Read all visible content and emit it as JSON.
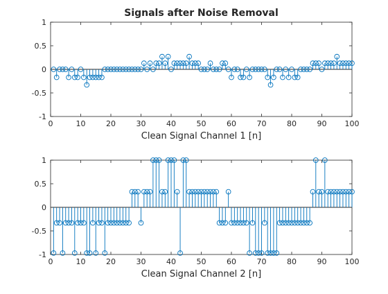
{
  "figure": {
    "title": "Signals after Noise Removal",
    "background": "#ffffff",
    "stem_color": "#0072BD",
    "axis_color": "#262626",
    "zero_line_color": "#262626"
  },
  "chart_data": [
    {
      "type": "stem",
      "title": "Signals after Noise Removal",
      "xlabel": "Clean Signal Channel 1 [n]",
      "ylabel": "",
      "xlim": [
        0,
        100
      ],
      "ylim": [
        -1,
        1
      ],
      "xticks": [
        0,
        10,
        20,
        30,
        40,
        50,
        60,
        70,
        80,
        90,
        100
      ],
      "yticks": [
        -1,
        -0.5,
        0,
        0.5,
        1
      ],
      "ytick_labels": [
        "-1",
        "-0.5",
        "0",
        "0.5",
        "1"
      ],
      "grid": false,
      "series": [
        {
          "x": [
            1,
            2,
            3,
            4,
            5,
            6,
            7,
            8,
            9,
            10,
            11,
            12,
            13,
            14,
            15,
            16,
            17,
            18,
            19,
            20,
            21,
            22,
            23,
            24,
            25,
            26,
            27,
            28,
            29,
            30,
            31,
            32,
            33,
            34,
            35,
            36,
            37,
            38,
            39,
            40,
            41,
            42,
            43,
            44,
            45,
            46,
            47,
            48,
            49,
            50,
            51,
            52,
            53,
            54,
            55,
            56,
            57,
            58,
            59,
            60,
            61,
            62,
            63,
            64,
            65,
            66,
            67,
            68,
            69,
            70,
            71,
            72,
            73,
            74,
            75,
            76,
            77,
            78,
            79,
            80,
            81,
            82,
            83,
            84,
            85,
            86,
            87,
            88,
            89,
            90,
            91,
            92,
            93,
            94,
            95,
            96,
            97,
            98,
            99,
            100
          ],
          "y": [
            0,
            -0.17,
            0,
            0,
            0,
            -0.17,
            0,
            -0.17,
            -0.17,
            0,
            -0.17,
            -0.33,
            -0.17,
            -0.17,
            -0.17,
            -0.17,
            -0.17,
            0,
            0,
            0,
            0,
            0,
            0,
            0,
            0,
            0,
            0,
            0,
            0,
            0,
            0.13,
            0,
            0.13,
            0,
            0.13,
            0.13,
            0.27,
            0.13,
            0.27,
            0,
            0.13,
            0.13,
            0.13,
            0.13,
            0.13,
            0.27,
            0.13,
            0.13,
            0.13,
            0,
            0,
            0,
            0.13,
            0,
            0,
            0,
            0.13,
            0.13,
            0,
            -0.17,
            0,
            0,
            -0.17,
            -0.17,
            0,
            -0.17,
            0,
            0,
            0,
            0,
            0,
            -0.17,
            -0.33,
            -0.17,
            0,
            0,
            -0.17,
            0,
            -0.17,
            0,
            -0.17,
            -0.17,
            0,
            0,
            0,
            0,
            0.13,
            0.13,
            0.13,
            0,
            0.13,
            0.13,
            0.13,
            0.13,
            0.27,
            0.13,
            0.13,
            0.13,
            0.13,
            0.13
          ]
        }
      ]
    },
    {
      "type": "stem",
      "title": "",
      "xlabel": "Clean Signal Channel 2 [n]",
      "ylabel": "",
      "xlim": [
        0,
        100
      ],
      "ylim": [
        -1,
        1
      ],
      "xticks": [
        0,
        10,
        20,
        30,
        40,
        50,
        60,
        70,
        80,
        90,
        100
      ],
      "yticks": [
        -1,
        -0.5,
        0,
        0.5,
        1
      ],
      "ytick_labels": [
        "-1",
        "-0.5",
        "0",
        "0.5",
        "1"
      ],
      "grid": false,
      "series": [
        {
          "x": [
            1,
            2,
            3,
            4,
            5,
            6,
            7,
            8,
            9,
            10,
            11,
            12,
            13,
            14,
            15,
            16,
            17,
            18,
            19,
            20,
            21,
            22,
            23,
            24,
            25,
            26,
            27,
            28,
            29,
            30,
            31,
            32,
            33,
            34,
            35,
            36,
            37,
            38,
            39,
            40,
            41,
            42,
            43,
            44,
            45,
            46,
            47,
            48,
            49,
            50,
            51,
            52,
            53,
            54,
            55,
            56,
            57,
            58,
            59,
            60,
            61,
            62,
            63,
            64,
            65,
            66,
            67,
            68,
            69,
            70,
            71,
            72,
            73,
            74,
            75,
            76,
            77,
            78,
            79,
            80,
            81,
            82,
            83,
            84,
            85,
            86,
            87,
            88,
            89,
            90,
            91,
            92,
            93,
            94,
            95,
            96,
            97,
            98,
            99,
            100
          ],
          "y": [
            -0.97,
            -0.33,
            -0.33,
            -0.97,
            -0.33,
            -0.33,
            -0.33,
            -0.97,
            -0.33,
            -0.33,
            -0.33,
            -0.97,
            -0.97,
            -0.33,
            -0.97,
            -0.33,
            -0.33,
            -0.97,
            -0.33,
            -0.33,
            -0.33,
            -0.33,
            -0.33,
            -0.33,
            -0.33,
            -0.33,
            0.33,
            0.33,
            0.33,
            -0.33,
            0.33,
            0.33,
            0.33,
            1,
            1,
            1,
            0.33,
            0.33,
            1,
            1,
            1,
            0.33,
            -0.97,
            1,
            1,
            0.33,
            0.33,
            0.33,
            0.33,
            0.33,
            0.33,
            0.33,
            0.33,
            0.33,
            0.33,
            -0.33,
            -0.33,
            -0.33,
            0.33,
            -0.33,
            -0.33,
            -0.33,
            -0.33,
            -0.33,
            -0.33,
            -0.97,
            -0.33,
            -0.97,
            -0.97,
            -0.97,
            -0.33,
            -0.97,
            -0.97,
            -0.97,
            -0.97,
            -0.33,
            -0.33,
            -0.33,
            -0.33,
            -0.33,
            -0.33,
            -0.33,
            -0.33,
            -0.33,
            -0.33,
            -0.33,
            0.33,
            1,
            0.33,
            0.33,
            1,
            0.33,
            0.33,
            0.33,
            0.33,
            0.33,
            0.33,
            0.33,
            0.33,
            0.33
          ]
        }
      ]
    }
  ]
}
